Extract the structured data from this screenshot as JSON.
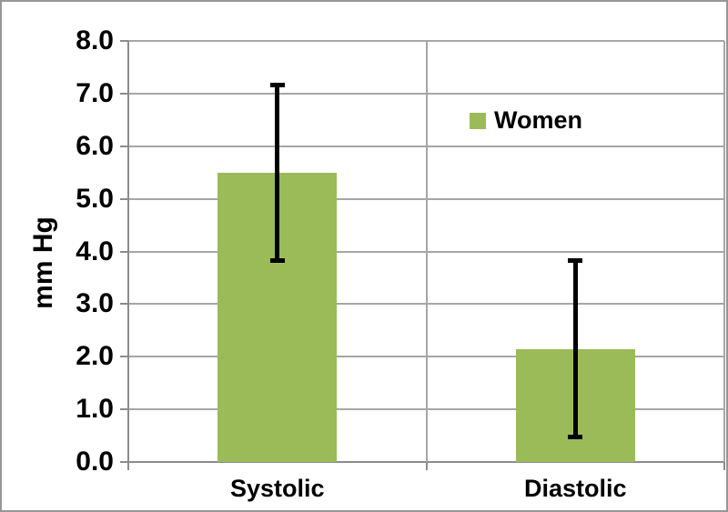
{
  "chart_data": {
    "type": "bar",
    "title": "",
    "ylabel": "mm Hg",
    "xlabel": "",
    "categories": [
      "Systolic",
      "Diastolic"
    ],
    "series": [
      {
        "name": "Women",
        "color": "#9BBB59",
        "values": [
          5.5,
          2.15
        ],
        "error_bars": {
          "type": "symmetric",
          "values": [
            1.67,
            1.67
          ]
        }
      }
    ],
    "ylim": [
      0.0,
      8.0
    ],
    "ytick_step": 1.0,
    "ytick_decimals": 1,
    "ytick_labels": [
      "0.0",
      "1.0",
      "2.0",
      "3.0",
      "4.0",
      "5.0",
      "6.0",
      "7.0",
      "8.0"
    ],
    "grid": {
      "horizontal": true,
      "vertical_category_boundaries": true
    },
    "legend": {
      "entries": [
        "Women"
      ],
      "position": "inside-top-right"
    }
  },
  "colors": {
    "bar": "#9BBB59",
    "error_bar": "#000000",
    "gridline": "#A6A6A6",
    "axis": "#8C8C8C",
    "frame_border": "#969696",
    "background": "#FFFFFF",
    "text": "#000000"
  }
}
